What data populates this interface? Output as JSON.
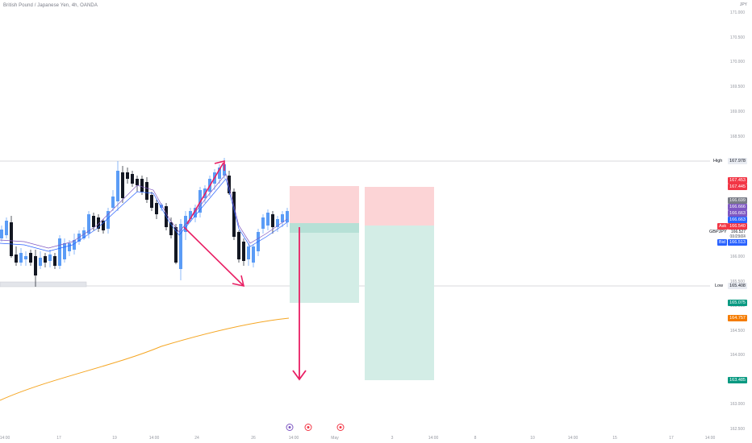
{
  "header": {
    "title": "British Pound / Japanese Yen, 4h, OANDA"
  },
  "axis": {
    "currency": "JPY"
  },
  "price_ticks": [
    "171.000",
    "170.500",
    "170.000",
    "169.500",
    "169.000",
    "168.500",
    "168.000",
    "167.500",
    "167.000",
    "166.500",
    "166.000",
    "165.500",
    "165.000",
    "164.500",
    "164.000",
    "163.500",
    "163.000",
    "162.500"
  ],
  "time_ticks": [
    "14:00",
    "17",
    "19",
    "14:00",
    "24",
    "26",
    "14:00",
    "May",
    "3",
    "14:00",
    "8",
    "10",
    "14:00",
    "15",
    "17",
    "14:00"
  ],
  "levels": {
    "high": {
      "label": "High",
      "value": "167.978"
    },
    "low": {
      "label": "Low",
      "value": "165.408"
    }
  },
  "price_tags": [
    {
      "id": "stop1",
      "value": "167.453",
      "color": "#f23645"
    },
    {
      "id": "stop2",
      "value": "167.445",
      "color": "#f23645"
    },
    {
      "id": "ma1",
      "value": "166.699",
      "color": "#787b86"
    },
    {
      "id": "ma2",
      "value": "166.666",
      "color": "#7e57c2"
    },
    {
      "id": "ma3",
      "value": "166.663",
      "color": "#7e57c2"
    },
    {
      "id": "ma4",
      "value": "166.663",
      "color": "#2962ff"
    },
    {
      "id": "tp1",
      "value": "165.075",
      "color": "#089981"
    },
    {
      "id": "ema",
      "value": "164.757",
      "color": "#f57c00"
    },
    {
      "id": "tp2",
      "value": "163.485",
      "color": "#089981"
    }
  ],
  "ask": {
    "label": "Ask",
    "value": "166.540",
    "color": "#f23645"
  },
  "symbol": {
    "name": "GBPJPY",
    "price": "166.527",
    "countdown": "01:29:04"
  },
  "bid": {
    "label": "Bid",
    "value": "166.513",
    "color": "#2962ff"
  },
  "colors": {
    "up": "#5b9cf6",
    "down": "#131722",
    "annotation": "#e91e63",
    "ema": "#f5a623",
    "stop_zone": "#fcd4d6",
    "profit_zone": "#d3ede6"
  },
  "event_icons": [
    "event-flag-icon",
    "event-flag-icon",
    "event-flag-icon"
  ]
}
